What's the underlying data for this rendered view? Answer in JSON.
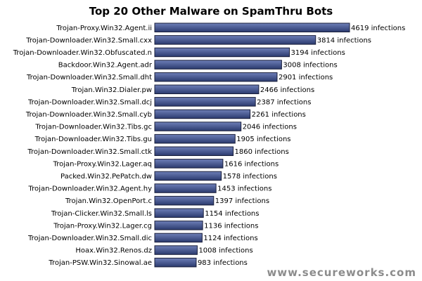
{
  "chart_data": {
    "type": "bar",
    "orientation": "horizontal",
    "title": "Top 20 Other Malware on SpamThru Bots",
    "value_suffix": " infections",
    "categories": [
      "Trojan-Proxy.Win32.Agent.ii",
      "Trojan-Downloader.Win32.Small.cxx",
      "Trojan-Downloader.Win32.Obfuscated.n",
      "Backdoor.Win32.Agent.adr",
      "Trojan-Downloader.Win32.Small.dht",
      "Trojan.Win32.Dialer.pw",
      "Trojan-Downloader.Win32.Small.dcj",
      "Trojan-Downloader.Win32.Small.cyb",
      "Trojan-Downloader.Win32.Tibs.gc",
      "Trojan-Downloader.Win32.Tibs.gu",
      "Trojan-Downloader.Win32.Small.ctk",
      "Trojan-Proxy.Win32.Lager.aq",
      "Packed.Win32.PePatch.dw",
      "Trojan-Downloader.Win32.Agent.hy",
      "Trojan.Win32.OpenPort.c",
      "Trojan-Clicker.Win32.Small.ls",
      "Trojan-Proxy.Win32.Lager.cg",
      "Trojan-Downloader.Win32.Small.dic",
      "Hoax.Win32.Renos.dz",
      "Trojan-PSW.Win32.Sinowal.ae"
    ],
    "values": [
      4619,
      3814,
      3194,
      3008,
      2901,
      2466,
      2387,
      2261,
      2046,
      1905,
      1860,
      1616,
      1578,
      1453,
      1397,
      1154,
      1136,
      1124,
      1008,
      983
    ],
    "xlim": [
      0,
      4619
    ],
    "grid": false,
    "legend": "none",
    "colors": {
      "bar_top": "#6e7fb8",
      "bar_bottom": "#2b3a6e",
      "bar_stroke": "#1a1f3a"
    }
  },
  "watermark": "www.secureworks.com"
}
